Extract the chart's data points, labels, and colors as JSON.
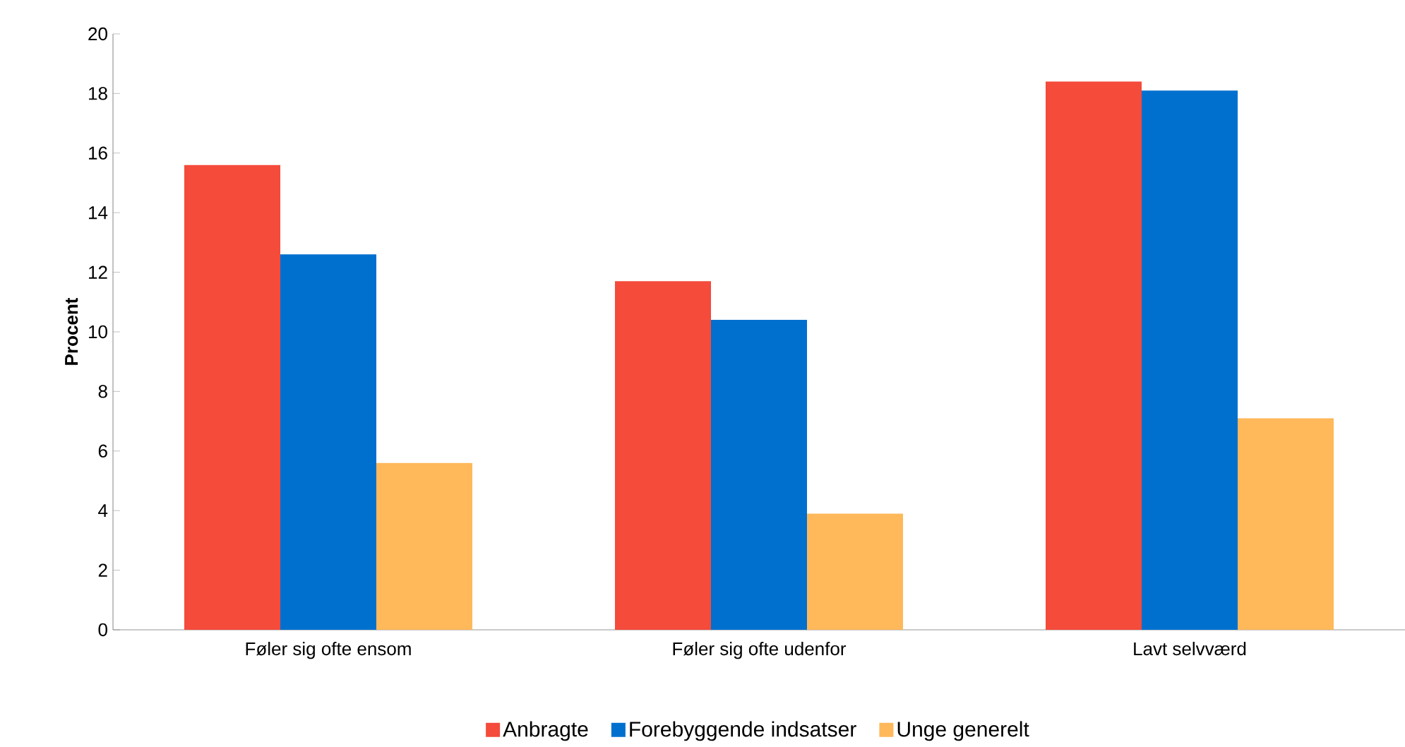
{
  "chart_data": {
    "type": "bar",
    "ylabel": "Procent",
    "categories": [
      "Føler sig ofte ensom",
      "Føler sig ofte udenfor",
      "Lavt selvværd"
    ],
    "series": [
      {
        "name": "Anbragte",
        "color": "#f44b3b",
        "values": [
          15.6,
          11.7,
          18.4
        ]
      },
      {
        "name": "Forebyggende indsatser",
        "color": "#0070cf",
        "values": [
          12.6,
          10.4,
          18.1
        ]
      },
      {
        "name": "Unge generelt",
        "color": "#ffb85a",
        "values": [
          5.6,
          3.9,
          7.1
        ]
      }
    ],
    "ylim": [
      0,
      20
    ],
    "yticks": [
      0,
      2,
      4,
      6,
      8,
      10,
      12,
      14,
      16,
      18,
      20
    ],
    "legend": "bottom"
  }
}
